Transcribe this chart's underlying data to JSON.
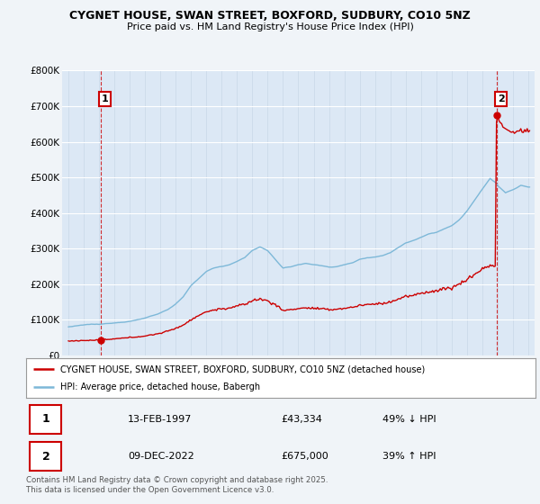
{
  "title_line1": "CYGNET HOUSE, SWAN STREET, BOXFORD, SUDBURY, CO10 5NZ",
  "title_line2": "Price paid vs. HM Land Registry's House Price Index (HPI)",
  "sale1_date": "13-FEB-1997",
  "sale1_price": 43334,
  "sale1_label": "49% ↓ HPI",
  "sale1_num": "1",
  "sale2_date": "09-DEC-2022",
  "sale2_price": 675000,
  "sale2_label": "39% ↑ HPI",
  "sale2_num": "2",
  "legend_line1": "CYGNET HOUSE, SWAN STREET, BOXFORD, SUDBURY, CO10 5NZ (detached house)",
  "legend_line2": "HPI: Average price, detached house, Babergh",
  "footer": "Contains HM Land Registry data © Crown copyright and database right 2025.\nThis data is licensed under the Open Government Licence v3.0.",
  "hpi_color": "#7db8d8",
  "price_color": "#cc0000",
  "background_color": "#f0f4f8",
  "plot_bg_color": "#dce8f5",
  "ylim_max": 800000,
  "sale1_year": 1997.1,
  "sale2_year": 2022.92
}
